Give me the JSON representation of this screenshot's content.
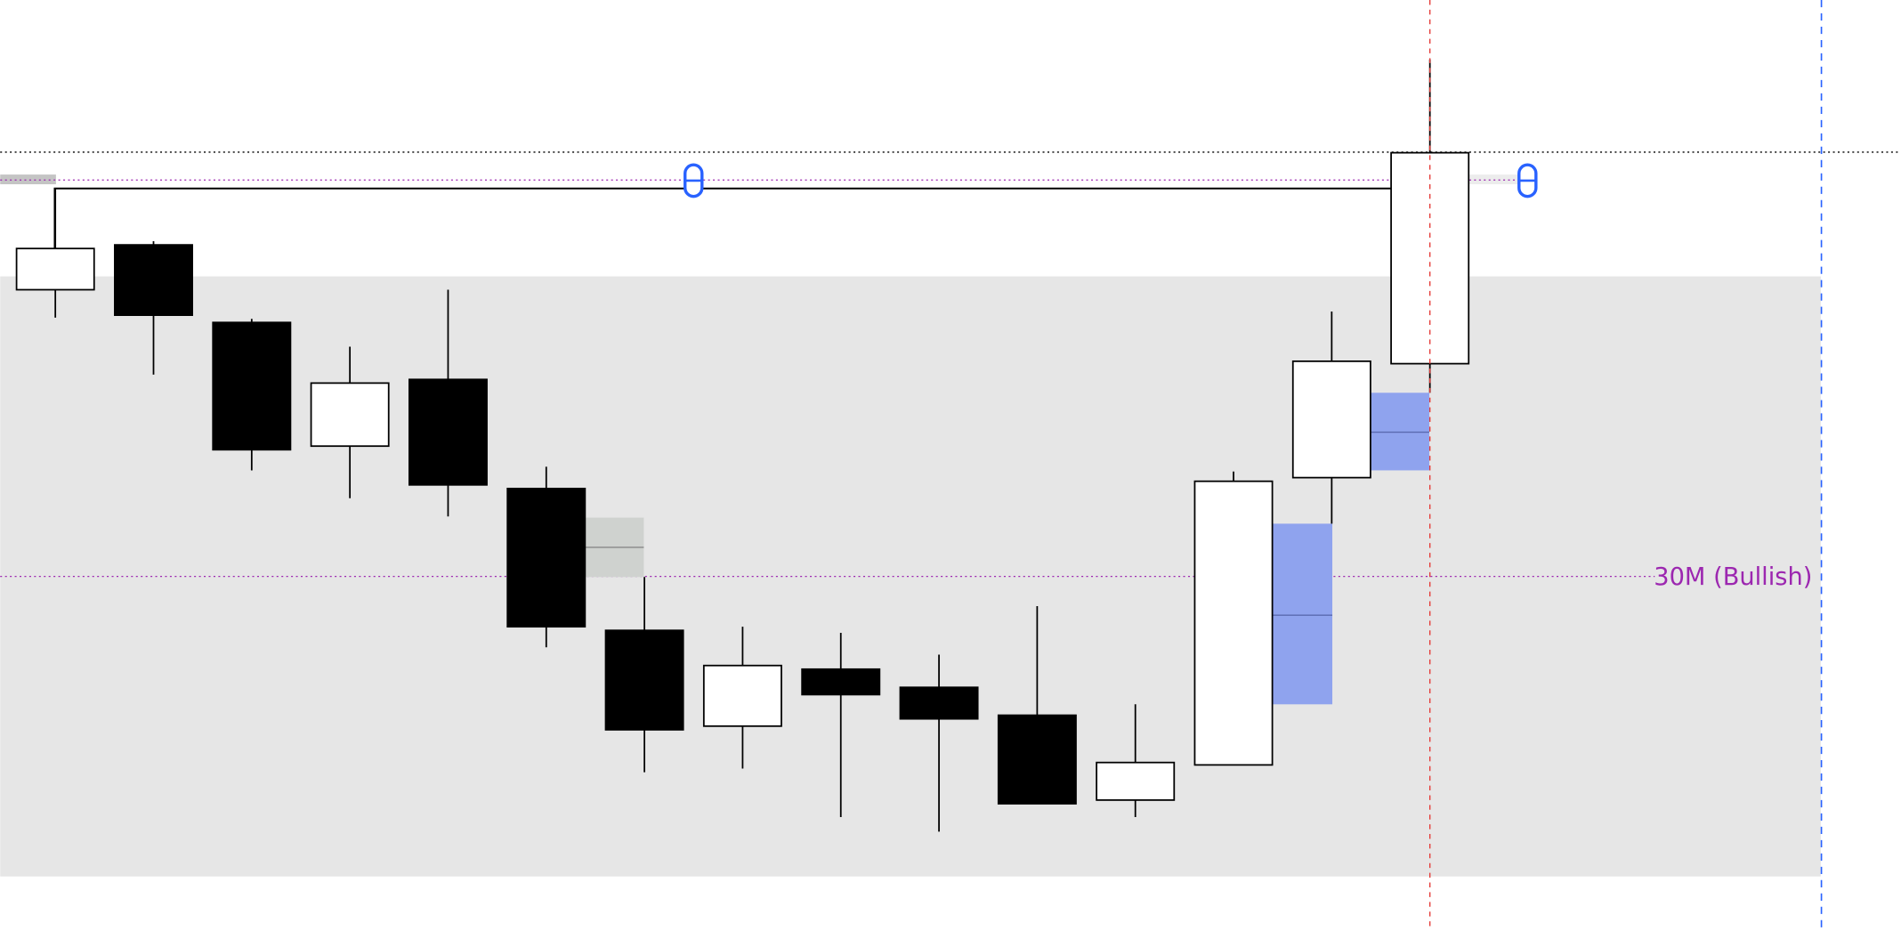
{
  "chart_data": {
    "type": "candlestick",
    "annotation": "30M (Bullish)",
    "open": [
      529,
      566,
      502,
      400,
      455,
      365,
      248,
      169,
      216,
      201,
      178,
      108,
      137,
      374,
      468
    ],
    "close": [
      563,
      508,
      397,
      452,
      368,
      251,
      166,
      219,
      195,
      175,
      105,
      139,
      371,
      470,
      642
    ],
    "high": [
      613,
      569,
      505,
      482,
      529,
      383,
      292,
      251,
      246,
      228,
      268,
      187,
      379,
      511,
      719
    ],
    "low": [
      506,
      459,
      380,
      357,
      342,
      234,
      131,
      134,
      94,
      82,
      105,
      94,
      137,
      336,
      444
    ],
    "up_color": "#ffffff",
    "down_color": "#000000",
    "ylim": [
      0,
      768
    ]
  }
}
